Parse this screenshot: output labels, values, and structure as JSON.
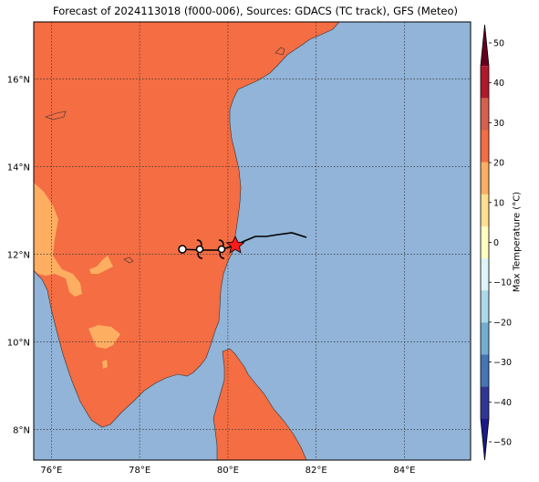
{
  "title": "Forecast of 2024113018 (f000-006), Sources: GDACS (TC track), GFS (Meteo)",
  "map": {
    "lon_range": [
      75.6,
      85.5
    ],
    "lat_range": [
      7.3,
      17.3
    ],
    "lon_ticks": [
      "76°E",
      "78°E",
      "80°E",
      "82°E",
      "84°E"
    ],
    "lat_ticks": [
      "8°N",
      "10°N",
      "12°N",
      "14°N",
      "16°N"
    ],
    "ocean_color": "#91b4d8",
    "land_color": "#f46d43",
    "warm_land_color": "#fdae61",
    "gridlines": "dotted"
  },
  "track": {
    "line_color": "#000000",
    "current_position_marker": "red-star",
    "storm_symbols": [
      "tropical-depression-icon",
      "tropical-storm-icon",
      "tropical-storm-icon"
    ]
  },
  "colorbar": {
    "label": "Max Temperature (°C)",
    "ticks": [
      "50",
      "40",
      "30",
      "20",
      "10",
      "0",
      "−10",
      "−20",
      "−30",
      "−40",
      "−50"
    ],
    "colors": [
      "#67001f",
      "#b2182b",
      "#d6604d",
      "#f46d43",
      "#fdae61",
      "#fee090",
      "#ffffbf",
      "#e0f3f8",
      "#abd9e9",
      "#74add1",
      "#4575b4",
      "#313695",
      "#1a1a8c"
    ]
  }
}
